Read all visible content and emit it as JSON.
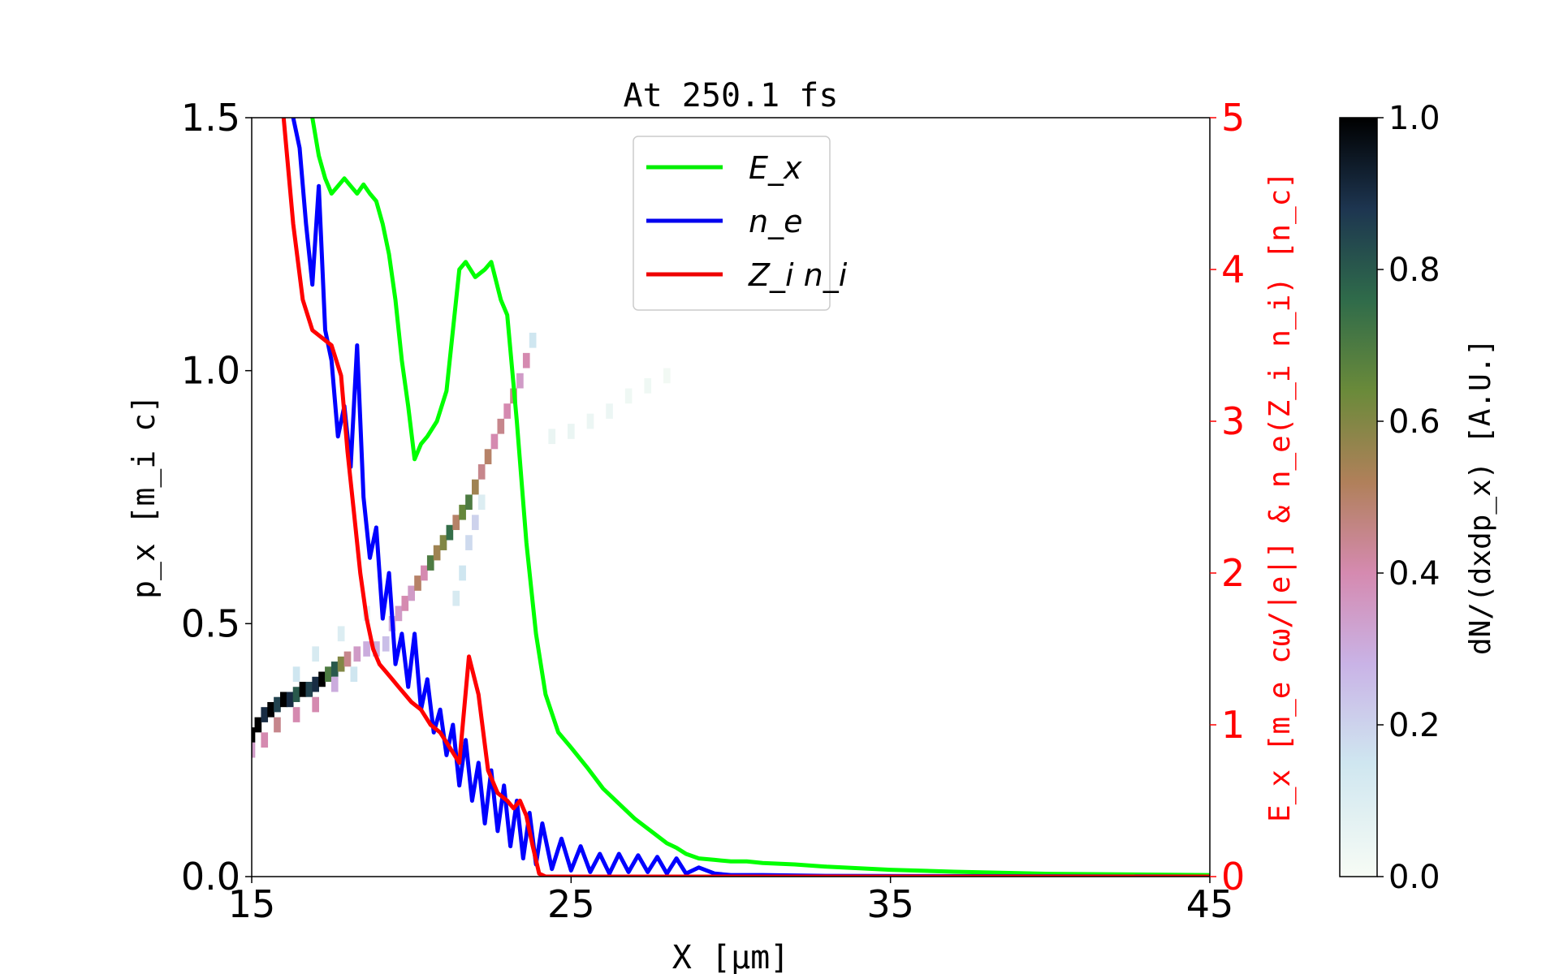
{
  "chart_data": {
    "type": "line",
    "title": "At 250.1 fs",
    "xlabel": "X [μm]",
    "ylabel_left": "p_x [m_i c]",
    "ylabel_right": "E_x [m_e cω/|e|] & n_e(Z_i n_i) [n_c]",
    "colorbar_label": "dN/(dxdp_x) [A.U.]",
    "xlim": [
      15,
      45
    ],
    "ylim_left": [
      0,
      1.5
    ],
    "ylim_right": [
      0,
      5
    ],
    "colorbar_range": [
      0,
      1.0
    ],
    "x_ticks": [
      "15",
      "25",
      "35",
      "45"
    ],
    "y_left_ticks": [
      "0.0",
      "0.5",
      "1.0",
      "1.5"
    ],
    "y_right_ticks": [
      "0",
      "1",
      "2",
      "3",
      "4",
      "5"
    ],
    "colorbar_ticks": [
      "0.0",
      "0.2",
      "0.4",
      "0.6",
      "0.8",
      "1.0"
    ],
    "legend": {
      "placement": "upper-center",
      "entries": [
        {
          "name": "E_x",
          "color": "#00ee00"
        },
        {
          "name": "n_e",
          "color": "#0000ee"
        },
        {
          "name": "Z_i n_i",
          "color": "#ee0000"
        }
      ]
    },
    "series": [
      {
        "name": "E_x",
        "axis": "right",
        "color": "#00ff00",
        "x": [
          16.9,
          17.1,
          17.3,
          17.5,
          17.7,
          17.9,
          18.1,
          18.3,
          18.5,
          18.7,
          18.9,
          19.1,
          19.3,
          19.5,
          19.7,
          19.9,
          20.1,
          20.3,
          20.5,
          20.8,
          21.1,
          21.3,
          21.5,
          21.7,
          22.0,
          22.3,
          22.5,
          22.8,
          23.0,
          23.3,
          23.6,
          23.9,
          24.2,
          24.6,
          25.0,
          25.5,
          26.0,
          26.5,
          27.0,
          27.5,
          28.0,
          28.3,
          28.6,
          29.0,
          29.5,
          30.0,
          30.5,
          31.0,
          32.0,
          33.0,
          35.0,
          37.0,
          40.0,
          45.0
        ],
        "values": [
          5.0,
          4.75,
          4.6,
          4.5,
          4.55,
          4.6,
          4.55,
          4.5,
          4.56,
          4.5,
          4.45,
          4.3,
          4.1,
          3.8,
          3.4,
          3.1,
          2.75,
          2.85,
          2.9,
          3.0,
          3.2,
          3.6,
          4.0,
          4.05,
          3.95,
          4.0,
          4.05,
          3.8,
          3.7,
          3.0,
          2.2,
          1.6,
          1.2,
          0.95,
          0.85,
          0.72,
          0.58,
          0.48,
          0.38,
          0.3,
          0.22,
          0.19,
          0.15,
          0.12,
          0.11,
          0.1,
          0.1,
          0.09,
          0.08,
          0.065,
          0.045,
          0.032,
          0.018,
          0.01
        ]
      },
      {
        "name": "n_e",
        "axis": "right",
        "color": "#0000ff",
        "x": [
          16.3,
          16.5,
          16.7,
          16.9,
          17.1,
          17.3,
          17.5,
          17.7,
          17.9,
          18.1,
          18.3,
          18.5,
          18.7,
          18.9,
          19.1,
          19.3,
          19.5,
          19.7,
          19.9,
          20.1,
          20.3,
          20.5,
          20.7,
          20.9,
          21.1,
          21.3,
          21.5,
          21.7,
          21.9,
          22.1,
          22.3,
          22.5,
          22.7,
          22.9,
          23.1,
          23.3,
          23.5,
          23.7,
          23.9,
          24.1,
          24.4,
          24.7,
          25.0,
          25.3,
          25.6,
          25.9,
          26.2,
          26.5,
          26.8,
          27.1,
          27.4,
          27.7,
          28.0,
          28.3,
          28.6,
          29.0,
          29.5,
          30.0,
          31.0,
          33.0,
          36.0,
          40.0,
          45.0
        ],
        "values": [
          5.0,
          4.8,
          4.3,
          3.9,
          4.55,
          3.6,
          3.4,
          2.9,
          3.1,
          2.7,
          3.5,
          2.5,
          2.1,
          2.3,
          1.7,
          2.0,
          1.4,
          1.6,
          1.25,
          1.6,
          1.1,
          1.3,
          0.95,
          1.1,
          0.8,
          1.0,
          0.6,
          0.9,
          0.5,
          0.75,
          0.35,
          0.7,
          0.3,
          0.6,
          0.2,
          0.5,
          0.12,
          0.42,
          0.08,
          0.35,
          0.05,
          0.25,
          0.04,
          0.2,
          0.03,
          0.15,
          0.02,
          0.15,
          0.03,
          0.14,
          0.03,
          0.13,
          0.02,
          0.12,
          0.02,
          0.06,
          0.02,
          0.01,
          0.01,
          0.005,
          0.003,
          0.002,
          0.0
        ]
      },
      {
        "name": "Z_i n_i",
        "axis": "right",
        "color": "#ff0000",
        "x": [
          16.0,
          16.3,
          16.6,
          16.9,
          17.2,
          17.5,
          17.8,
          18.0,
          18.2,
          18.4,
          18.6,
          18.8,
          19.0,
          19.2,
          19.4,
          19.6,
          19.8,
          20.0,
          20.3,
          20.6,
          20.9,
          21.2,
          21.5,
          21.8,
          22.1,
          22.4,
          22.7,
          23.0,
          23.2,
          23.4,
          23.6,
          23.8,
          24.0,
          24.2,
          25.0,
          30.0,
          35.0,
          45.0
        ],
        "values": [
          5.0,
          4.3,
          3.8,
          3.6,
          3.55,
          3.5,
          3.3,
          2.8,
          2.4,
          2.0,
          1.7,
          1.5,
          1.4,
          1.35,
          1.3,
          1.25,
          1.2,
          1.15,
          1.1,
          1.0,
          0.95,
          0.85,
          0.75,
          1.45,
          1.2,
          0.7,
          0.55,
          0.5,
          0.45,
          0.5,
          0.4,
          0.2,
          0.02,
          0.0,
          0.0,
          0.0,
          0.0,
          0.0
        ]
      }
    ],
    "phase_space": {
      "axis": "left",
      "cells": [
        [
          15.0,
          0.28,
          1.0
        ],
        [
          15.2,
          0.3,
          1.0
        ],
        [
          15.4,
          0.32,
          0.9
        ],
        [
          15.6,
          0.33,
          1.0
        ],
        [
          15.8,
          0.34,
          0.85
        ],
        [
          16.0,
          0.35,
          1.0
        ],
        [
          16.2,
          0.35,
          0.9
        ],
        [
          16.4,
          0.36,
          0.8
        ],
        [
          16.6,
          0.37,
          1.0
        ],
        [
          16.8,
          0.37,
          0.85
        ],
        [
          17.0,
          0.38,
          0.9
        ],
        [
          17.2,
          0.39,
          1.0
        ],
        [
          17.4,
          0.4,
          0.7
        ],
        [
          17.6,
          0.41,
          0.8
        ],
        [
          17.8,
          0.42,
          0.6
        ],
        [
          18.0,
          0.43,
          0.45
        ],
        [
          18.3,
          0.44,
          0.35
        ],
        [
          18.6,
          0.45,
          0.3
        ],
        [
          18.9,
          0.45,
          0.3
        ],
        [
          19.2,
          0.46,
          0.25
        ],
        [
          15.0,
          0.25,
          0.35
        ],
        [
          15.4,
          0.27,
          0.4
        ],
        [
          15.8,
          0.3,
          0.45
        ],
        [
          16.4,
          0.32,
          0.4
        ],
        [
          17.0,
          0.34,
          0.4
        ],
        [
          17.6,
          0.38,
          0.3
        ],
        [
          18.2,
          0.4,
          0.15
        ],
        [
          16.4,
          0.4,
          0.15
        ],
        [
          17.0,
          0.44,
          0.12
        ],
        [
          17.8,
          0.48,
          0.1
        ],
        [
          18.6,
          0.52,
          0.08
        ],
        [
          19.4,
          0.5,
          0.3
        ],
        [
          19.6,
          0.52,
          0.35
        ],
        [
          19.8,
          0.54,
          0.4
        ],
        [
          20.0,
          0.56,
          0.35
        ],
        [
          20.2,
          0.58,
          0.5
        ],
        [
          20.4,
          0.6,
          0.4
        ],
        [
          20.6,
          0.62,
          0.7
        ],
        [
          20.8,
          0.64,
          0.55
        ],
        [
          21.0,
          0.66,
          0.6
        ],
        [
          21.2,
          0.68,
          0.75
        ],
        [
          21.4,
          0.7,
          0.5
        ],
        [
          21.6,
          0.72,
          0.65
        ],
        [
          21.8,
          0.74,
          0.7
        ],
        [
          22.0,
          0.77,
          0.55
        ],
        [
          22.2,
          0.8,
          0.45
        ],
        [
          22.4,
          0.83,
          0.5
        ],
        [
          22.6,
          0.86,
          0.4
        ],
        [
          22.8,
          0.89,
          0.45
        ],
        [
          23.0,
          0.92,
          0.4
        ],
        [
          23.2,
          0.95,
          0.45
        ],
        [
          23.4,
          0.98,
          0.35
        ],
        [
          23.6,
          1.02,
          0.4
        ],
        [
          23.8,
          1.06,
          0.15
        ],
        [
          21.4,
          0.55,
          0.12
        ],
        [
          21.6,
          0.6,
          0.15
        ],
        [
          21.8,
          0.66,
          0.18
        ],
        [
          22.0,
          0.7,
          0.2
        ],
        [
          22.2,
          0.74,
          0.1
        ],
        [
          24.4,
          0.87,
          0.05
        ],
        [
          25.0,
          0.88,
          0.05
        ],
        [
          25.6,
          0.9,
          0.04
        ],
        [
          26.2,
          0.92,
          0.04
        ],
        [
          26.8,
          0.95,
          0.03
        ],
        [
          27.4,
          0.97,
          0.03
        ],
        [
          28.0,
          0.99,
          0.02
        ]
      ]
    }
  }
}
